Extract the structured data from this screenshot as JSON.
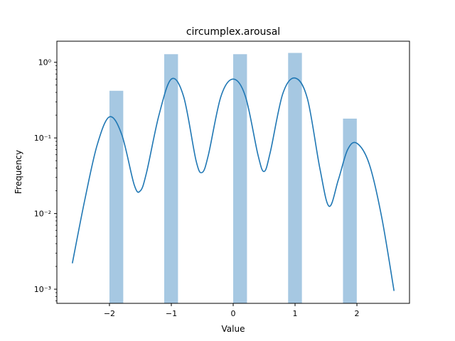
{
  "chart_data": {
    "type": "bar",
    "title": "circumplex.arousal",
    "xlabel": "Value",
    "ylabel": "Frequency",
    "yscale": "log",
    "xlim": [
      -2.85,
      2.85
    ],
    "ylim": [
      0.00065,
      1.9
    ],
    "grid": false,
    "legend": "none",
    "x_ticks": [
      {
        "value": -2,
        "label": "−2"
      },
      {
        "value": -1,
        "label": "−1"
      },
      {
        "value": 0,
        "label": "0"
      },
      {
        "value": 1,
        "label": "1"
      },
      {
        "value": 2,
        "label": "2"
      }
    ],
    "y_ticks": [
      {
        "value": 0.001,
        "label": "10⁻³"
      },
      {
        "value": 0.01,
        "label": "10⁻²"
      },
      {
        "value": 0.1,
        "label": "10⁻¹"
      },
      {
        "value": 1,
        "label": "10⁰"
      }
    ],
    "histogram": {
      "bin_start": -2.0,
      "bin_width": 0.223,
      "bars": [
        {
          "value": 0.42
        },
        {
          "value": 1.28
        },
        {
          "value": 1.28
        },
        {
          "value": 1.33
        },
        {
          "value": 0.18
        }
      ],
      "bar_positions": [
        -2.0,
        -1.115,
        0.0,
        0.888,
        1.775
      ],
      "color": "#a6c8e2"
    },
    "kde": {
      "color": "#1f77b4",
      "x": [
        -2.6,
        -2.4,
        -2.2,
        -2.0,
        -1.8,
        -1.6,
        -1.5,
        -1.4,
        -1.2,
        -1.0,
        -0.8,
        -0.6,
        -0.5,
        -0.4,
        -0.2,
        0.0,
        0.2,
        0.4,
        0.5,
        0.6,
        0.8,
        1.0,
        1.2,
        1.4,
        1.55,
        1.7,
        1.85,
        2.0,
        2.2,
        2.4,
        2.6
      ],
      "y": [
        0.0022,
        0.015,
        0.08,
        0.19,
        0.11,
        0.024,
        0.02,
        0.035,
        0.2,
        0.6,
        0.35,
        0.05,
        0.035,
        0.06,
        0.35,
        0.6,
        0.35,
        0.06,
        0.036,
        0.065,
        0.38,
        0.62,
        0.33,
        0.04,
        0.0125,
        0.028,
        0.07,
        0.085,
        0.045,
        0.009,
        0.00095
      ]
    }
  }
}
